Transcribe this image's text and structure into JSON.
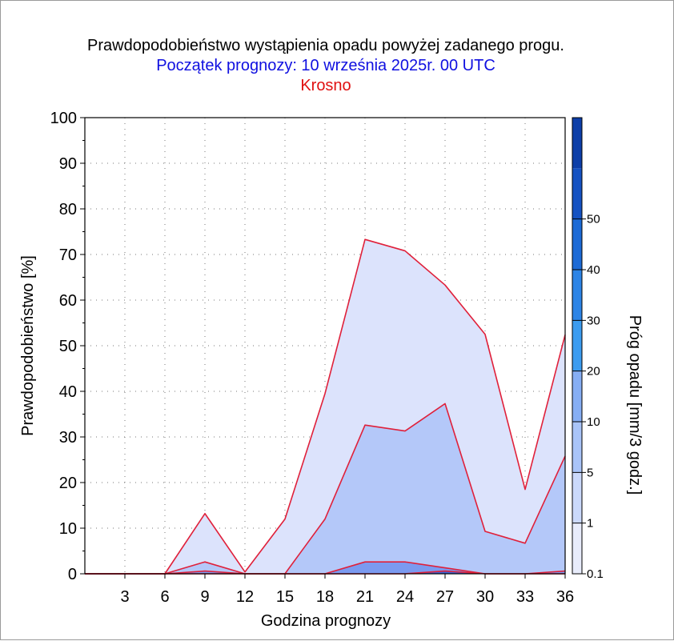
{
  "chart_data": {
    "type": "area",
    "title": "Prawdopodobieństwo wystąpienia opadu powyżej zadanego progu.",
    "subtitle": "Początek prognozy: 10 września 2025r. 00 UTC",
    "location": "Krosno",
    "xlabel": "Godzina prognozy",
    "ylabel": "Prawdopodobieństwo [%]",
    "colorbar_label": "Próg opadu [mm/3 godz.]",
    "xlim": [
      0,
      36
    ],
    "ylim": [
      0,
      100
    ],
    "x_ticks": [
      "3",
      "6",
      "9",
      "12",
      "15",
      "18",
      "21",
      "24",
      "27",
      "30",
      "33",
      "36"
    ],
    "y_ticks": [
      "0",
      "10",
      "20",
      "30",
      "40",
      "50",
      "60",
      "70",
      "80",
      "90",
      "100"
    ],
    "colorbar_ticks": [
      "0.1",
      "1",
      "5",
      "10",
      "20",
      "30",
      "40",
      "50"
    ],
    "colorbar_colors": [
      "#e8ecfb",
      "#cbd9fb",
      "#a9c4f8",
      "#86aef4",
      "#3c9cf0",
      "#2c84e6",
      "#1c6ad6",
      "#1552c2",
      "#0d3ea8"
    ],
    "grid": true,
    "x": [
      0,
      3,
      6,
      9,
      12,
      15,
      18,
      21,
      24,
      27,
      30,
      33,
      36
    ],
    "series": [
      {
        "name": "0.1",
        "color": "#dce3fc",
        "values": [
          0,
          0,
          0,
          13.2,
          0.4,
          12,
          39.5,
          73.3,
          70.8,
          63.3,
          52.5,
          18.5,
          52.4
        ]
      },
      {
        "name": "1",
        "color": "#b4c8f9",
        "values": [
          0,
          0,
          0,
          2.6,
          0,
          0,
          12,
          32.6,
          31.3,
          37.3,
          9.3,
          6.7,
          25.8
        ]
      },
      {
        "name": "5",
        "color": "#7b9af0",
        "values": [
          0,
          0,
          0,
          0.6,
          0,
          0,
          0,
          2.6,
          2.6,
          1.3,
          0,
          0,
          0.6
        ]
      },
      {
        "name": "10",
        "color": "#3b63d8",
        "values": [
          0,
          0,
          0,
          0,
          0,
          0,
          0,
          0,
          0,
          0.6,
          0,
          0,
          0
        ]
      }
    ]
  }
}
